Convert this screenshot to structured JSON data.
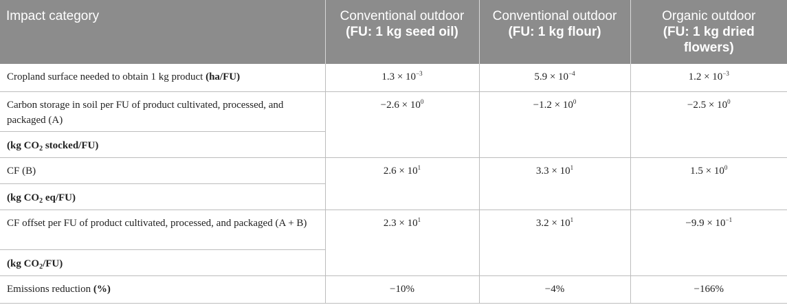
{
  "header": {
    "col0": "Impact category",
    "col1_line1": "Conventional outdoor",
    "col1_line2": "(FU: 1 kg seed oil)",
    "col2_line1": "Conventional outdoor",
    "col2_line2": "(FU: 1 kg flour)",
    "col3_line1": "Organic outdoor",
    "col3_line2": "(FU: 1 kg dried flowers)"
  },
  "rows": {
    "cropland": {
      "label": "Cropland surface needed to obtain 1 kg product ",
      "unit": "(ha/FU)",
      "v1_mant": "1.3 × 10",
      "v1_exp": "−3",
      "v2_mant": "5.9 × 10",
      "v2_exp": "−4",
      "v3_mant": "1.2 × 10",
      "v3_exp": "−3"
    },
    "carbon": {
      "label": "Carbon storage in soil per FU of product cultivated, processed, and packaged (A)",
      "unit_pre": "(kg CO",
      "unit_sub": "2",
      "unit_post": " stocked/FU)",
      "v1_mant": "−2.6 × 10",
      "v1_exp": "0",
      "v2_mant": "−1.2 × 10",
      "v2_exp": "0",
      "v3_mant": "−2.5 × 10",
      "v3_exp": "0"
    },
    "cf": {
      "label": "CF (B)",
      "unit_pre": "(kg CO",
      "unit_sub": "2",
      "unit_post": " eq/FU)",
      "v1_mant": "2.6 × 10",
      "v1_exp": "1",
      "v2_mant": "3.3 × 10",
      "v2_exp": "1",
      "v3_mant": "1.5 × 10",
      "v3_exp": "0"
    },
    "offset": {
      "label": "CF offset per FU of product cultivated, processed, and packaged (A + B)",
      "unit_pre": "(kg CO",
      "unit_sub": "2",
      "unit_post": "/FU)",
      "v1_mant": "2.3 × 10",
      "v1_exp": "1",
      "v2_mant": "3.2 × 10",
      "v2_exp": "1",
      "v3_mant": "−9.9 × 10",
      "v3_exp": "−1"
    },
    "emissions": {
      "label": "Emissions reduction ",
      "unit": "(%)",
      "v1": "−10%",
      "v2": "−4%",
      "v3": "−166%"
    }
  }
}
